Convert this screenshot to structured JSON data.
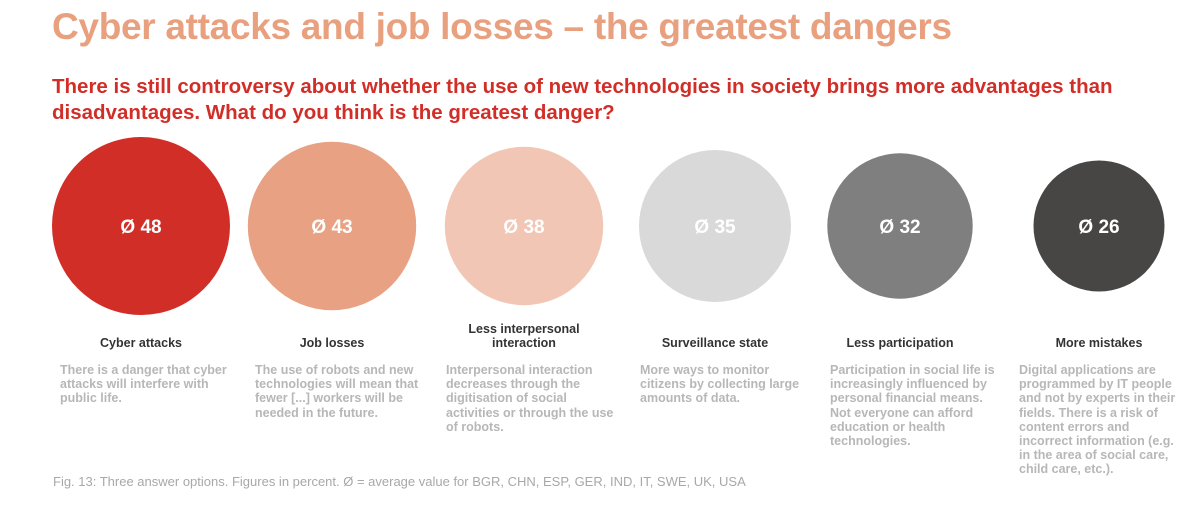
{
  "chart_data": {
    "type": "bubble",
    "title": "Cyber attacks and job losses – the greatest dangers",
    "subtitle": "There is still controversy about whether the use of new technologies in society brings more advantages than disadvantages. What do you think is the greatest danger?",
    "value_prefix": "Ø",
    "categories": [
      "Cyber attacks",
      "Job losses",
      "Less interpersonal interaction",
      "Surveillance state",
      "Less participation",
      "More mistakes"
    ],
    "values": [
      48,
      43,
      38,
      35,
      32,
      26
    ],
    "descriptions": [
      "There is a danger that cyber attacks will interfere with public life.",
      "The use of robots and new technologies will mean that fewer [...] workers will be needed in the future.",
      "Interpersonal interaction decreases through the digitisation of social activities or through the use of robots.",
      "More ways to monitor citizens by collecting large amounts of data.",
      "Participation in social life is increasingly influenced by personal financial means. Not everyone can afford education or health technologies.",
      "Digital applications are programmed by IT people and not by experts in their fields. There is a risk of content errors and incorrect information (e.g. in the area of social care, child care, etc.)."
    ],
    "colors": [
      "#d22e28",
      "#e8a283",
      "#f2c6b4",
      "#d9d9d9",
      "#7f7f7f",
      "#474645"
    ],
    "footnote": "Fig. 13: Three answer options. Figures in percent. Ø = average value for BGR, CHN, ESP, GER, IND, IT, SWE, UK, USA"
  }
}
